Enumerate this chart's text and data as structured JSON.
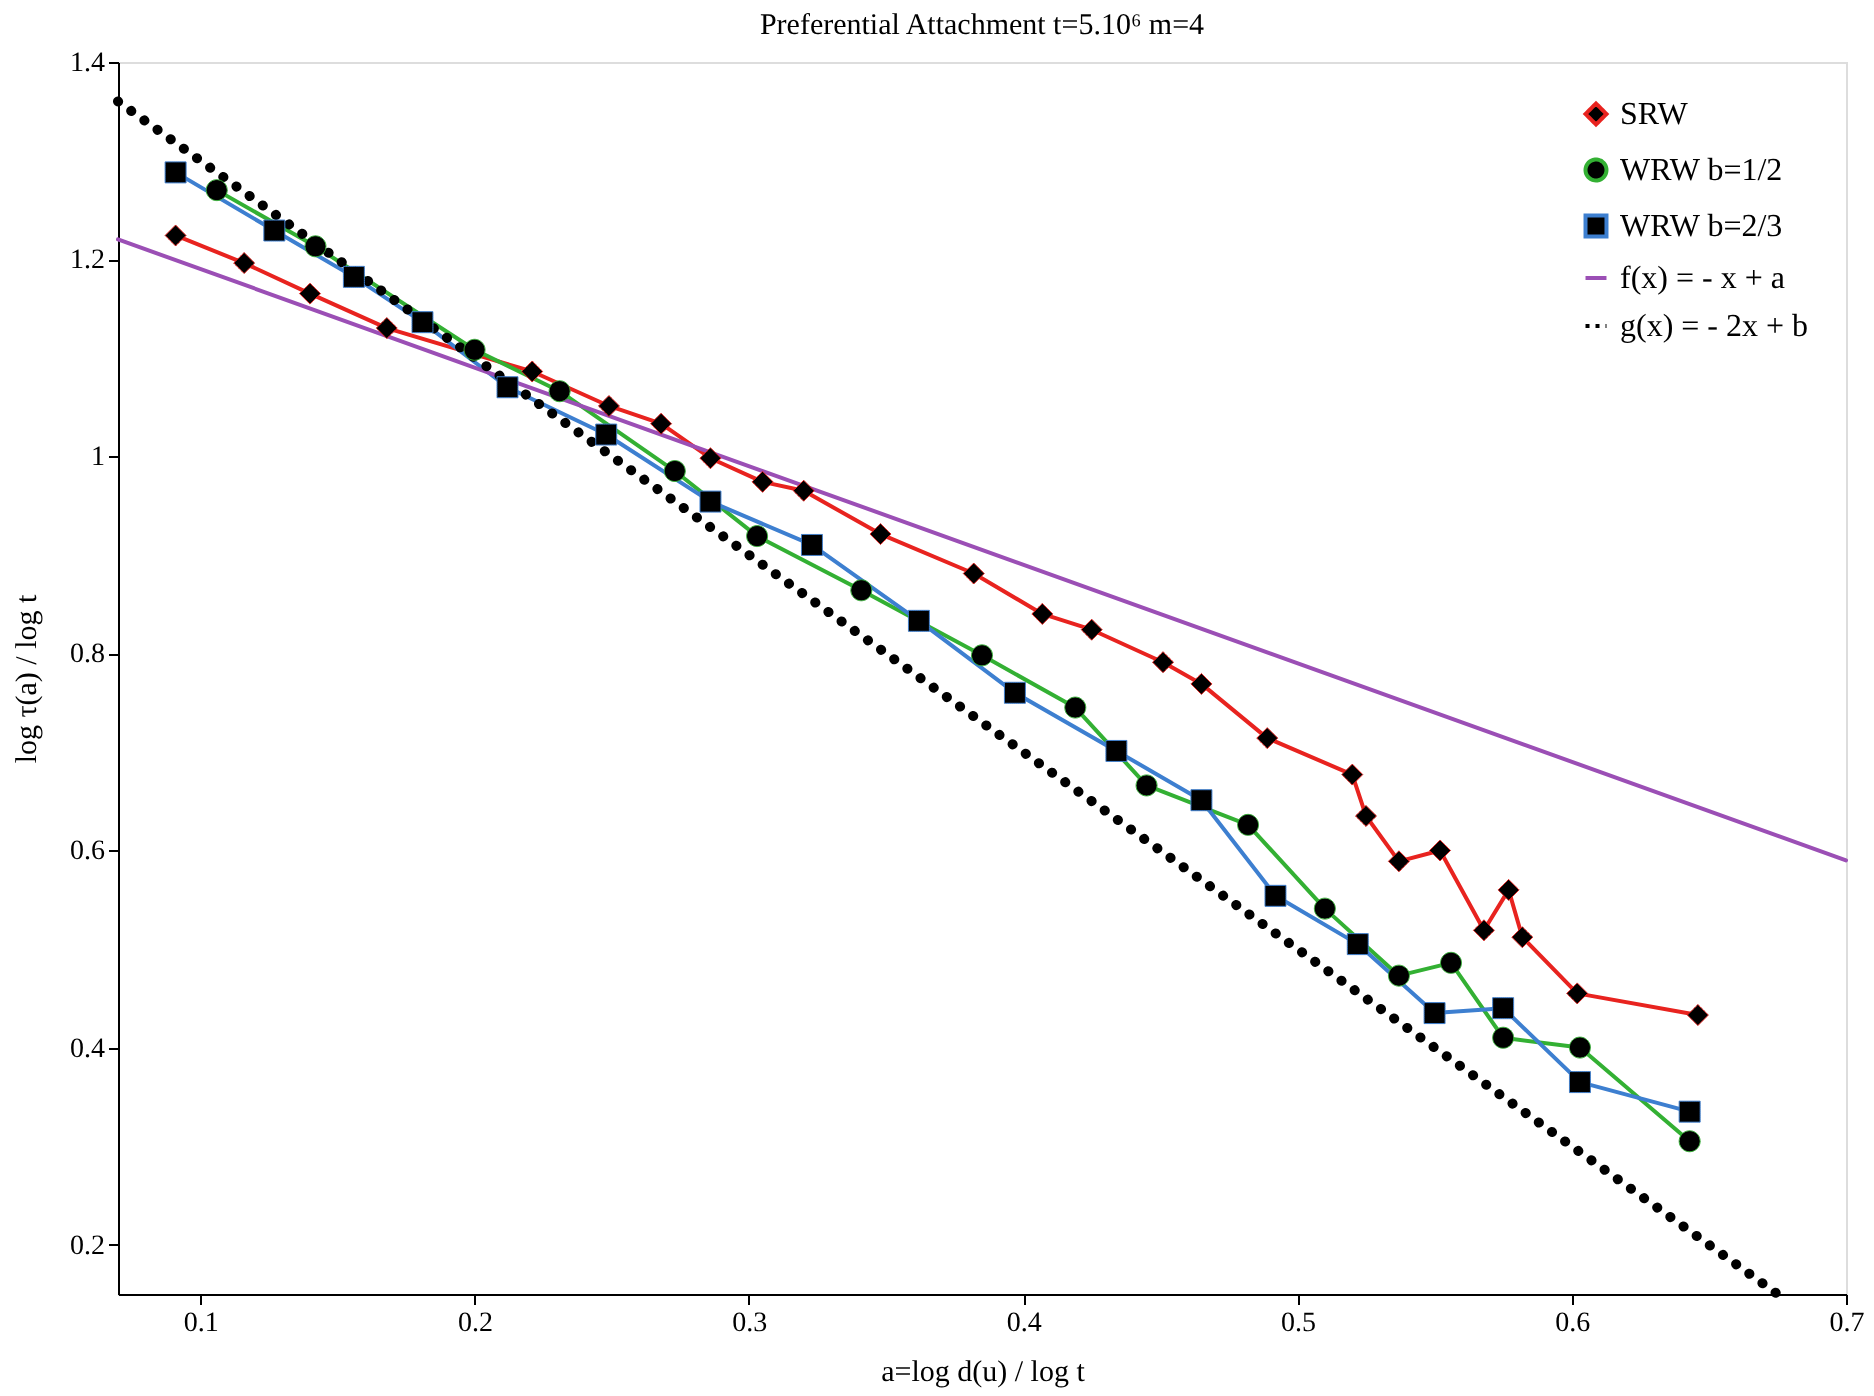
{
  "chart_data": {
    "type": "line",
    "title": "Preferential Attachment t=5.10⁶  m=4",
    "xlabel": "a=log d(u) / log t",
    "ylabel": "log τ(a) / log t",
    "xlim": [
      0.07,
      0.7
    ],
    "ylim": [
      0.15,
      1.4
    ],
    "xticks": [
      0.1,
      0.2,
      0.3,
      0.4,
      0.5,
      0.6,
      0.7
    ],
    "yticks": [
      0.2,
      0.4,
      0.6,
      0.8,
      1,
      1.2,
      1.4
    ],
    "grid": false,
    "legend": "top right",
    "series": [
      {
        "name": "SRW",
        "color": "#e8231f",
        "marker": "diamond",
        "line_style": "solid",
        "x": [
          0.091,
          0.116,
          0.14,
          0.168,
          0.221,
          0.249,
          0.268,
          0.286,
          0.305,
          0.32,
          0.348,
          0.382,
          0.407,
          0.425,
          0.451,
          0.465,
          0.489,
          0.52,
          0.525,
          0.537,
          0.552,
          0.568,
          0.577,
          0.582,
          0.602,
          0.646
        ],
        "values": [
          1.224,
          1.196,
          1.165,
          1.13,
          1.086,
          1.051,
          1.033,
          0.998,
          0.974,
          0.965,
          0.921,
          0.881,
          0.84,
          0.824,
          0.791,
          0.769,
          0.714,
          0.677,
          0.635,
          0.589,
          0.6,
          0.519,
          0.56,
          0.512,
          0.455,
          0.433
        ]
      },
      {
        "name": "WRW b=1/2",
        "color": "#33b033",
        "marker": "circle",
        "line_style": "solid",
        "x": [
          0.106,
          0.142,
          0.2,
          0.231,
          0.273,
          0.303,
          0.341,
          0.385,
          0.419,
          0.445,
          0.482,
          0.51,
          0.537,
          0.556,
          0.575,
          0.603,
          0.643
        ],
        "values": [
          1.27,
          1.213,
          1.108,
          1.066,
          0.985,
          0.919,
          0.864,
          0.798,
          0.745,
          0.666,
          0.626,
          0.541,
          0.473,
          0.486,
          0.41,
          0.4,
          0.305
        ]
      },
      {
        "name": "WRW b=2/3",
        "color": "#3d7fd0",
        "marker": "square",
        "line_style": "solid",
        "x": [
          0.091,
          0.127,
          0.156,
          0.181,
          0.212,
          0.248,
          0.286,
          0.323,
          0.362,
          0.397,
          0.434,
          0.465,
          0.492,
          0.522,
          0.55,
          0.575,
          0.603,
          0.643
        ],
        "values": [
          1.288,
          1.229,
          1.182,
          1.136,
          1.07,
          1.022,
          0.954,
          0.91,
          0.833,
          0.76,
          0.701,
          0.651,
          0.554,
          0.505,
          0.435,
          0.44,
          0.365,
          0.335
        ]
      },
      {
        "name": "f(x) = - x + a",
        "color": "#9b4fb5",
        "marker": "none",
        "line_style": "solid",
        "x": [
          0.07,
          0.7
        ],
        "values": [
          1.22,
          0.59
        ]
      },
      {
        "name": "g(x) = - 2x + b",
        "color": "#000000",
        "marker": "none",
        "line_style": "dotted",
        "x": [
          0.07,
          0.675
        ],
        "values": [
          1.36,
          0.15
        ]
      }
    ]
  }
}
